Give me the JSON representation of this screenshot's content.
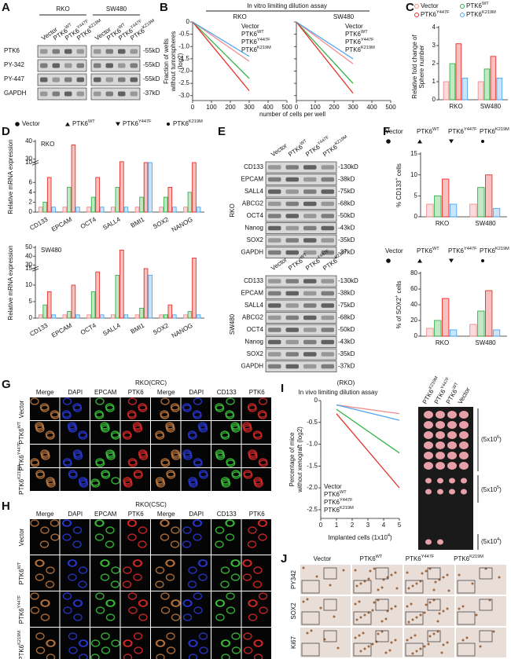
{
  "variants": [
    {
      "base": "Vector"
    },
    {
      "base": "PTK6",
      "sup": "WT"
    },
    {
      "base": "PTK6",
      "sup": "Y447F"
    },
    {
      "base": "PTK6",
      "sup": "K219M"
    }
  ],
  "colors": [
    "#f08c8c",
    "#34b34a",
    "#e8302a",
    "#4ea6f0"
  ],
  "A": {
    "label": "A",
    "groups": [
      "RKO",
      "SW480"
    ],
    "rows": [
      "PTK6",
      "PY-342",
      "PY-447",
      "GAPDH"
    ],
    "sizes": [
      "-55kD",
      "-55kD",
      "-55kD",
      "-37kD"
    ]
  },
  "B": {
    "label": "B",
    "title": "In vitro limiting dilution assay",
    "ylabel": [
      "Fraction of wells",
      "without tumorspheres",
      "(log2)"
    ],
    "xlabel": "number of cells per well",
    "ylim": [
      -3.2,
      0
    ],
    "yticks": [
      0,
      -0.5,
      {
        "value": -1,
        "label": "-1.0"
      },
      -1.5,
      {
        "value": -2,
        "label": "-2.0"
      },
      -2.5,
      {
        "value": -3,
        "label": "-3.0"
      }
    ],
    "plots": [
      {
        "name": "RKO",
        "xlim": [
          0,
          500
        ],
        "xticks": [
          0,
          100,
          200,
          300,
          400,
          500
        ],
        "series": [
          {
            "x": [
              0,
              300
            ],
            "values": [
              0,
              -1.6
            ]
          },
          {
            "x": [
              0,
              300
            ],
            "values": [
              0,
              -2.3
            ]
          },
          {
            "x": [
              0,
              300
            ],
            "values": [
              0,
              -2.8
            ]
          },
          {
            "x": [
              0,
              300
            ],
            "values": [
              0,
              -1.4
            ]
          }
        ]
      },
      {
        "name": "SW480",
        "xlim": [
          0,
          500
        ],
        "xticks": [
          0,
          100,
          200,
          300,
          400,
          500
        ],
        "series": [
          {
            "x": [
              0,
              300
            ],
            "values": [
              0,
              -1.7
            ]
          },
          {
            "x": [
              0,
              300
            ],
            "values": [
              0,
              -2.5
            ]
          },
          {
            "x": [
              0,
              300
            ],
            "values": [
              0,
              -2.9
            ]
          },
          {
            "x": [
              0,
              300
            ],
            "values": [
              0,
              -1.5
            ]
          }
        ]
      }
    ]
  },
  "C": {
    "label": "C",
    "ylabel": [
      "Relative fold change of",
      "Sphere number"
    ],
    "categories": [
      "RKO",
      "SW480"
    ],
    "ylim": [
      0,
      4
    ],
    "yticks": [
      0,
      1,
      2,
      3,
      4
    ],
    "series": [
      {
        "values": [
          1,
          1
        ]
      },
      {
        "values": [
          2,
          1.7
        ]
      },
      {
        "values": [
          3.1,
          2.4
        ]
      },
      {
        "values": [
          1.2,
          1.2
        ]
      }
    ]
  },
  "D": {
    "label": "D",
    "charts": [
      {
        "name": "RKO",
        "ylabel": "Relative mRNA expression",
        "categories": [
          "CD133",
          "EPCAM",
          "OCT4",
          "SALL4",
          "BMI1",
          "SOX2",
          "NANOG"
        ],
        "ylim": [
          0,
          40
        ],
        "ybreak": [
          10,
          30
        ],
        "yticks": [
          0,
          2,
          4,
          6,
          10,
          30,
          40
        ],
        "series": [
          {
            "values": [
              1,
              1,
              1,
              1,
              1,
              1,
              1
            ]
          },
          {
            "values": [
              2,
              5,
              3,
              5,
              3,
              3,
              4
            ]
          },
          {
            "values": [
              7,
              38,
              7,
              15,
              10,
              5,
              10
            ]
          },
          {
            "values": [
              1,
              1,
              1,
              1,
              10,
              1,
              1
            ]
          }
        ]
      },
      {
        "name": "SW480",
        "ylabel": "Relative mRNA expression",
        "categories": [
          "CD133",
          "EPCAM",
          "OCT4",
          "SALL4",
          "BMI1",
          "SOX2",
          "NANOG"
        ],
        "ylim": [
          0,
          50
        ],
        "ybreak": [
          15,
          30
        ],
        "yticks": [
          0,
          5,
          10,
          15,
          30,
          40,
          50
        ],
        "series": [
          {
            "values": [
              1,
              1,
              1,
              1,
              1,
              1,
              1
            ]
          },
          {
            "values": [
              4,
              2,
              8,
              13,
              3,
              1,
              2
            ]
          },
          {
            "values": [
              8,
              10,
              14,
              47,
              15,
              4,
              38
            ]
          },
          {
            "values": [
              1,
              1,
              1,
              1,
              13,
              1,
              1
            ]
          }
        ]
      }
    ]
  },
  "E": {
    "label": "E",
    "groups": [
      "RKO",
      "SW480"
    ],
    "rows": [
      "CD133",
      "EPCAM",
      "SALL4",
      "ABCG2",
      "OCT4",
      "Nanog",
      "SOX2",
      "GAPDH"
    ],
    "sizes": [
      "-130kD",
      "-38kD",
      "-75kD",
      "-68kD",
      "-50kD",
      "-43kD",
      "-35kD",
      "-37kD"
    ]
  },
  "F": {
    "label": "F",
    "charts": [
      {
        "ylabel": {
          "base": "% CD133",
          "sup": "+",
          "tail": " cells"
        },
        "categories": [
          "RKO",
          "SW480"
        ],
        "ylim": [
          0,
          15
        ],
        "yticks": [
          0,
          5,
          10,
          15
        ],
        "series": [
          {
            "values": [
              3,
              3
            ]
          },
          {
            "values": [
              5,
              7
            ]
          },
          {
            "values": [
              9,
              10
            ]
          },
          {
            "values": [
              3,
              2
            ]
          }
        ]
      },
      {
        "ylabel": {
          "base": "% of SOX2",
          "sup": "+",
          "tail": " cells"
        },
        "categories": [
          "RKO",
          "SW480"
        ],
        "ylim": [
          0,
          80
        ],
        "yticks": [
          0,
          20,
          40,
          60,
          80
        ],
        "series": [
          {
            "values": [
              10,
              15
            ]
          },
          {
            "values": [
              20,
              32
            ]
          },
          {
            "values": [
              48,
              58
            ]
          },
          {
            "values": [
              8,
              8
            ]
          }
        ]
      }
    ]
  },
  "G": {
    "label": "G",
    "title": "RKO(CRC)",
    "columns": [
      "Merge",
      "DAPI",
      "EPCAM",
      "PTK6",
      "Merge",
      "DAPI",
      "CD133",
      "PTK6"
    ]
  },
  "H": {
    "label": "H",
    "title": "RKO(CSC)",
    "columns": [
      "Merge",
      "DAPI",
      "EPCAM",
      "PTK6",
      "Merge",
      "DAPI",
      "CD133",
      "PTK6"
    ]
  },
  "I": {
    "label": "I",
    "context": "(RKO)",
    "title": "In vivo limiting dilution assay",
    "ylabel": [
      "Percentage of mice",
      "without xenograft (log2)"
    ],
    "xlabel": {
      "base": "Implanted cells (1x10",
      "sup": "4",
      "tail": ")"
    },
    "xlim": [
      0,
      5
    ],
    "xticks": [
      0,
      1,
      2,
      3,
      4,
      5
    ],
    "ylim": [
      -2.7,
      0
    ],
    "yticks": [
      0,
      -0.5,
      {
        "value": -1,
        "label": "-1.0"
      },
      -1.5,
      {
        "value": -2,
        "label": "-2.0"
      },
      -2.5
    ],
    "series": [
      {
        "x": [
          1,
          5
        ],
        "values": [
          -0.1,
          -0.3
        ]
      },
      {
        "x": [
          1,
          5
        ],
        "values": [
          -0.2,
          -1.2
        ]
      },
      {
        "x": [
          1,
          5
        ],
        "values": [
          -0.3,
          -2.0
        ]
      },
      {
        "x": [
          1,
          5
        ],
        "values": [
          -0.1,
          -0.45
        ]
      }
    ],
    "doses": [
      {
        "base": "(5x10",
        "sup": "6",
        "tail": ")"
      },
      {
        "base": "(5x10",
        "sup": "5",
        "tail": ")"
      },
      {
        "base": "(5x10",
        "sup": "4",
        "tail": ")"
      }
    ]
  },
  "J": {
    "label": "J",
    "rows": [
      "PY342",
      "SOX2",
      "Ki67"
    ]
  }
}
